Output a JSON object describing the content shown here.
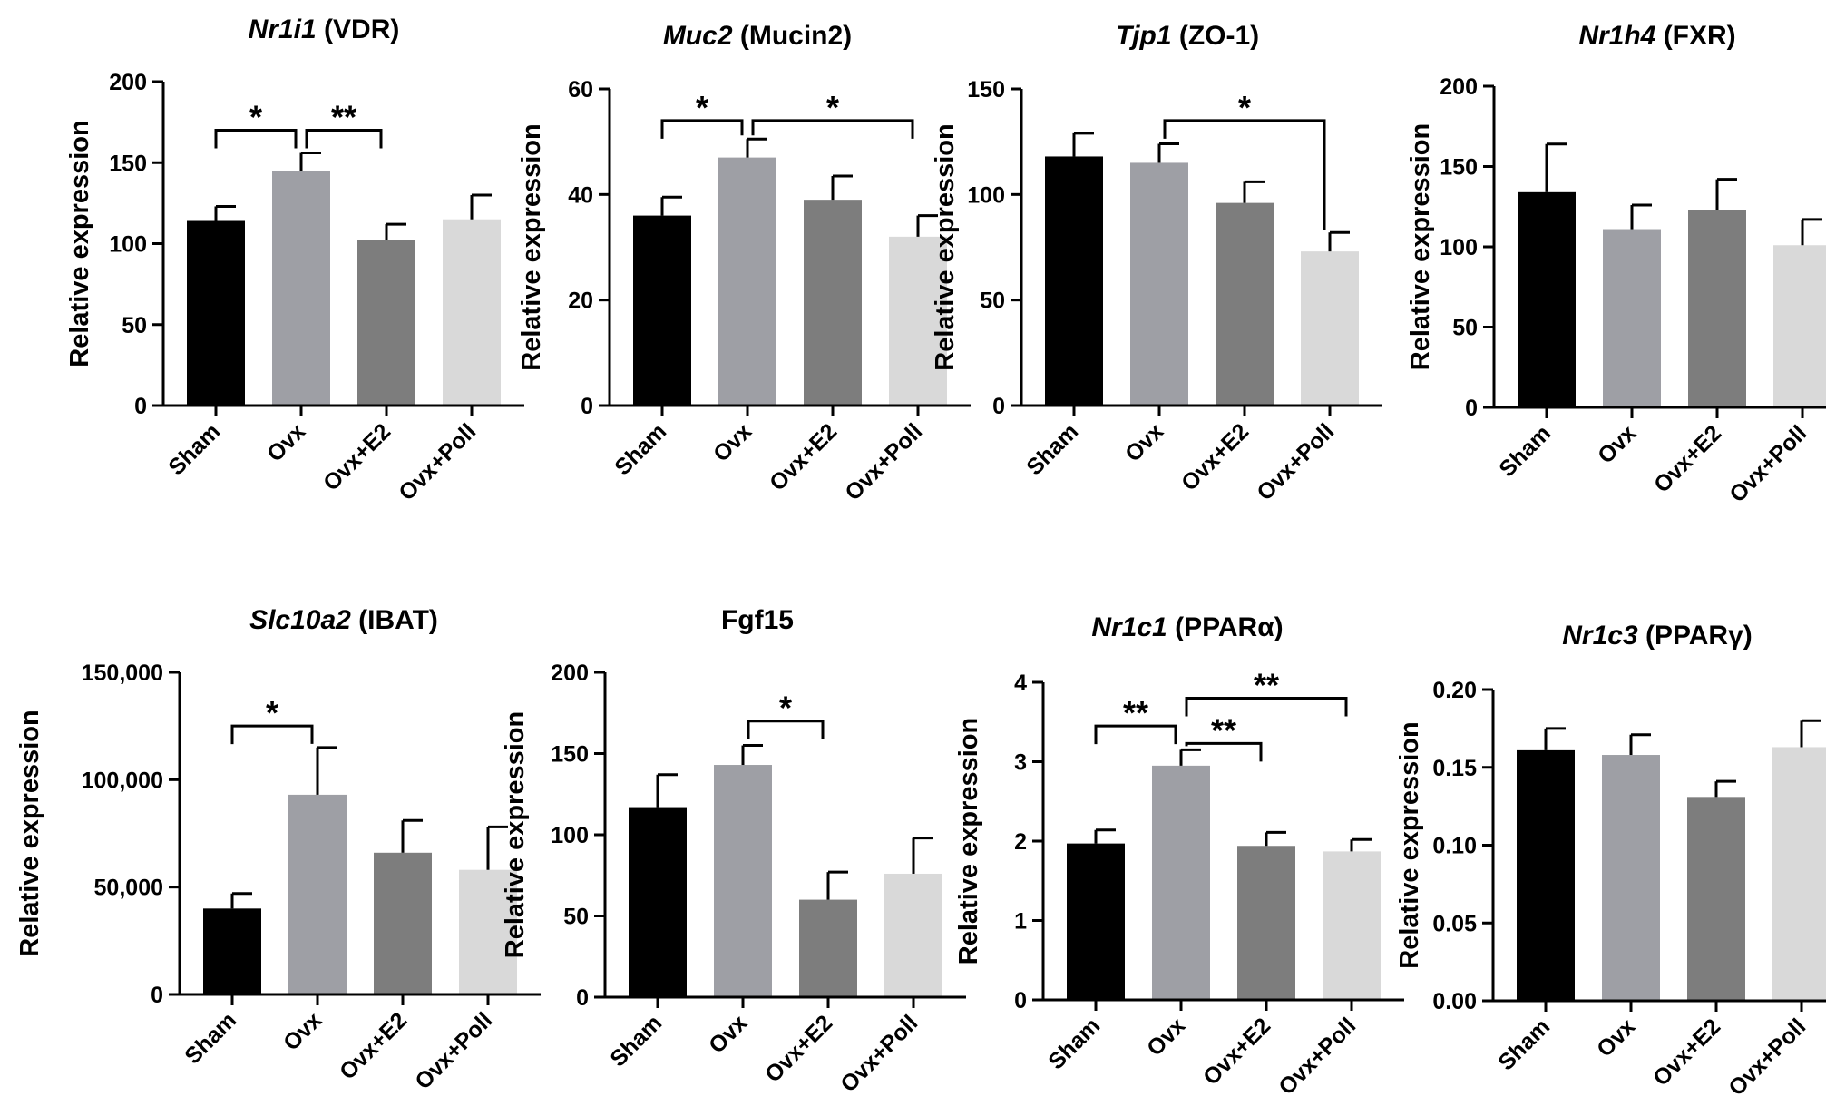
{
  "colors": {
    "Sham": "#000000",
    "Ovx": "#9e9fa5",
    "Ovx+E2": "#7d7d7d",
    "Ovx+Poll": "#d9d9d9"
  },
  "chart_data": [
    {
      "type": "bar",
      "title_gene": "Nr1i1",
      "title_protein": " (VDR)",
      "ylabel": "Relative expression",
      "categories": [
        "Sham",
        "Ovx",
        "Ovx+E2",
        "Ovx+Poll"
      ],
      "values": [
        114,
        145,
        102,
        115
      ],
      "errors": [
        9,
        11,
        10,
        15
      ],
      "ylim": [
        0,
        200
      ],
      "yticks": [
        0,
        50,
        100,
        150,
        200
      ],
      "ytick_labels": [
        "0",
        "50",
        "100",
        "150",
        "200"
      ],
      "significance": [
        {
          "from": 0,
          "to": 1,
          "label": "*",
          "y": 170
        },
        {
          "from": 1,
          "to": 2,
          "label": "**",
          "y": 170
        }
      ]
    },
    {
      "type": "bar",
      "title_gene": "Muc2",
      "title_protein": " (Mucin2)",
      "ylabel": "Relative expression",
      "categories": [
        "Sham",
        "Ovx",
        "Ovx+E2",
        "Ovx+Poll"
      ],
      "values": [
        36,
        47,
        39,
        32
      ],
      "errors": [
        3.5,
        3.5,
        4.5,
        4
      ],
      "ylim": [
        0,
        60
      ],
      "yticks": [
        0,
        20,
        40,
        60
      ],
      "ytick_labels": [
        "0",
        "20",
        "40",
        "60"
      ],
      "significance": [
        {
          "from": 0,
          "to": 1,
          "label": "*",
          "y": 54
        },
        {
          "from": 1,
          "to": 3,
          "label": "*",
          "y": 54
        }
      ]
    },
    {
      "type": "bar",
      "title_gene": "Tjp1",
      "title_protein": " (ZO-1)",
      "ylabel": "Relative expression",
      "categories": [
        "Sham",
        "Ovx",
        "Ovx+E2",
        "Ovx+Poll"
      ],
      "values": [
        118,
        115,
        96,
        73
      ],
      "errors": [
        11,
        9,
        10,
        9
      ],
      "ylim": [
        0,
        150
      ],
      "yticks": [
        0,
        50,
        100,
        150
      ],
      "ytick_labels": [
        "0",
        "50",
        "100",
        "150"
      ],
      "significance": [
        {
          "from": 1,
          "to": 3,
          "label": "*",
          "y": 135,
          "right_leg_to": 83
        }
      ]
    },
    {
      "type": "bar",
      "title_gene": "Nr1h4",
      "title_protein": " (FXR)",
      "ylabel": "Relative expression",
      "categories": [
        "Sham",
        "Ovx",
        "Ovx+E2",
        "Ovx+Poll"
      ],
      "values": [
        134,
        111,
        123,
        101
      ],
      "errors": [
        30,
        15,
        19,
        16
      ],
      "ylim": [
        0,
        200
      ],
      "yticks": [
        0,
        50,
        100,
        150,
        200
      ],
      "ytick_labels": [
        "0",
        "50",
        "100",
        "150",
        "200"
      ],
      "significance": []
    },
    {
      "type": "bar",
      "title_gene": "Slc10a2",
      "title_protein": " (IBAT)",
      "ylabel": "Relative expression",
      "categories": [
        "Sham",
        "Ovx",
        "Ovx+E2",
        "Ovx+Poll"
      ],
      "values": [
        40000,
        93000,
        66000,
        58000
      ],
      "errors": [
        7000,
        22000,
        15000,
        20000
      ],
      "ylim": [
        0,
        150000
      ],
      "yticks": [
        0,
        50000,
        100000,
        150000
      ],
      "ytick_labels": [
        "0",
        "50,000",
        "100,000",
        "150,000"
      ],
      "significance": [
        {
          "from": 0,
          "to": 1,
          "label": "*",
          "y": 125000
        }
      ]
    },
    {
      "type": "bar",
      "title_gene": "",
      "title_protein": "Fgf15",
      "ylabel": "Relative expression",
      "categories": [
        "Sham",
        "Ovx",
        "Ovx+E2",
        "Ovx+Poll"
      ],
      "values": [
        117,
        143,
        60,
        76
      ],
      "errors": [
        20,
        12,
        17,
        22
      ],
      "ylim": [
        0,
        200
      ],
      "yticks": [
        0,
        50,
        100,
        150,
        200
      ],
      "ytick_labels": [
        "0",
        "50",
        "100",
        "150",
        "200"
      ],
      "significance": [
        {
          "from": 1,
          "to": 2,
          "label": "*",
          "y": 170
        }
      ]
    },
    {
      "type": "bar",
      "title_gene": "Nr1c1",
      "title_protein": " (PPARα)",
      "ylabel": "Relative expression",
      "categories": [
        "Sham",
        "Ovx",
        "Ovx+E2",
        "Ovx+Poll"
      ],
      "values": [
        1.97,
        2.95,
        1.94,
        1.87
      ],
      "errors": [
        0.17,
        0.2,
        0.17,
        0.15
      ],
      "ylim": [
        0,
        4
      ],
      "yticks": [
        0,
        1,
        2,
        3,
        4
      ],
      "ytick_labels": [
        "0",
        "1",
        "2",
        "3",
        "4"
      ],
      "significance": [
        {
          "from": 0,
          "to": 1,
          "label": "**",
          "y": 3.45
        },
        {
          "from": 1,
          "to": 3,
          "label": "**",
          "y": 3.8
        },
        {
          "from": 1,
          "to": 2,
          "label": "**",
          "y": 3.23
        }
      ]
    },
    {
      "type": "bar",
      "title_gene": "Nr1c3",
      "title_protein": " (PPARγ)",
      "ylabel": "Relative expression",
      "categories": [
        "Sham",
        "Ovx",
        "Ovx+E2",
        "Ovx+Poll"
      ],
      "values": [
        0.161,
        0.158,
        0.131,
        0.163
      ],
      "errors": [
        0.014,
        0.013,
        0.01,
        0.017
      ],
      "ylim": [
        0,
        0.2
      ],
      "yticks": [
        0,
        0.05,
        0.1,
        0.15,
        0.2
      ],
      "ytick_labels": [
        "0.00",
        "0.05",
        "0.10",
        "0.15",
        "0.20"
      ],
      "significance": []
    }
  ]
}
